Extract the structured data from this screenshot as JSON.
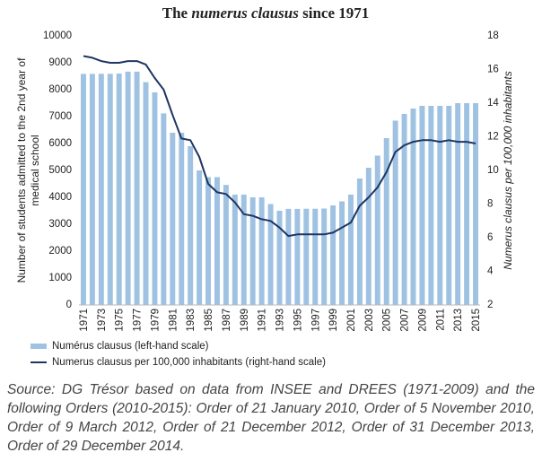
{
  "chart_data": {
    "type": "bar-line",
    "title": [
      "The ",
      "numerus clausus",
      " since 1971"
    ],
    "y_label": [
      "Number of students admitted to the 2nd year of",
      "medical school"
    ],
    "y2_label": "Numerus clausus per 100,000 inhabitants",
    "categories": [
      "1971",
      null,
      "1973",
      null,
      "1975",
      null,
      "1977",
      null,
      "1979",
      null,
      "1981",
      null,
      "1983",
      null,
      "1985",
      null,
      "1987",
      null,
      "1989",
      null,
      "1991",
      null,
      "1993",
      null,
      "1995",
      null,
      "1997",
      null,
      "1999",
      null,
      "2001",
      null,
      "2003",
      null,
      "2005",
      null,
      "2007",
      null,
      "2009",
      null,
      "2011",
      null,
      "2013",
      null,
      "2015"
    ],
    "ylim": [
      0,
      10000
    ],
    "yticks": [
      0,
      1000,
      2000,
      3000,
      4000,
      5000,
      6000,
      7000,
      8000,
      9000,
      10000
    ],
    "y2lim": [
      2,
      18
    ],
    "y2ticks": [
      2,
      4,
      6,
      8,
      10,
      12,
      14,
      16,
      18
    ],
    "legend": "bottom-left",
    "series": [
      {
        "name": "Numérus clausus (left-hand scale)",
        "color": "#9fc2e2",
        "kind": "bar",
        "values": [
          8588,
          8588,
          8591,
          8591,
          8600,
          8671,
          8671,
          8280,
          7900,
          7120,
          6400,
          6400,
          5900,
          5000,
          4750,
          4750,
          4460,
          4100,
          4100,
          4000,
          4000,
          3750,
          3500,
          3570,
          3570,
          3576,
          3576,
          3583,
          3700,
          3850,
          4100,
          4700,
          5100,
          5550,
          6200,
          6850,
          7100,
          7300,
          7400,
          7400,
          7400,
          7400,
          7500,
          7500,
          7500
        ]
      },
      {
        "name": "Numerus clausus per 100,000 inhabitants (right-hand scale)",
        "color": "#1f3564",
        "kind": "line",
        "axis": "y2",
        "values": [
          16.8,
          16.7,
          16.5,
          16.4,
          16.4,
          16.5,
          16.5,
          16.3,
          15.5,
          14.8,
          13.3,
          11.9,
          11.8,
          10.8,
          9.2,
          8.7,
          8.6,
          8.1,
          7.4,
          7.3,
          7.1,
          7.0,
          6.6,
          6.1,
          6.2,
          6.2,
          6.2,
          6.2,
          6.3,
          6.6,
          6.9,
          7.9,
          8.4,
          9.0,
          9.9,
          11.1,
          11.5,
          11.7,
          11.8,
          11.8,
          11.7,
          11.8,
          11.7,
          11.7,
          11.6
        ]
      }
    ],
    "note": "Source: DG Trésor based on data from INSEE and DREES (1971-2009) and the following Orders (2010-2015): Order of 21 January 2010, Order of 5 November 2010, Order of 9 March 2012, Order of 21 December 2012, Order of 31 December 2013, Order of 29 December 2014."
  }
}
